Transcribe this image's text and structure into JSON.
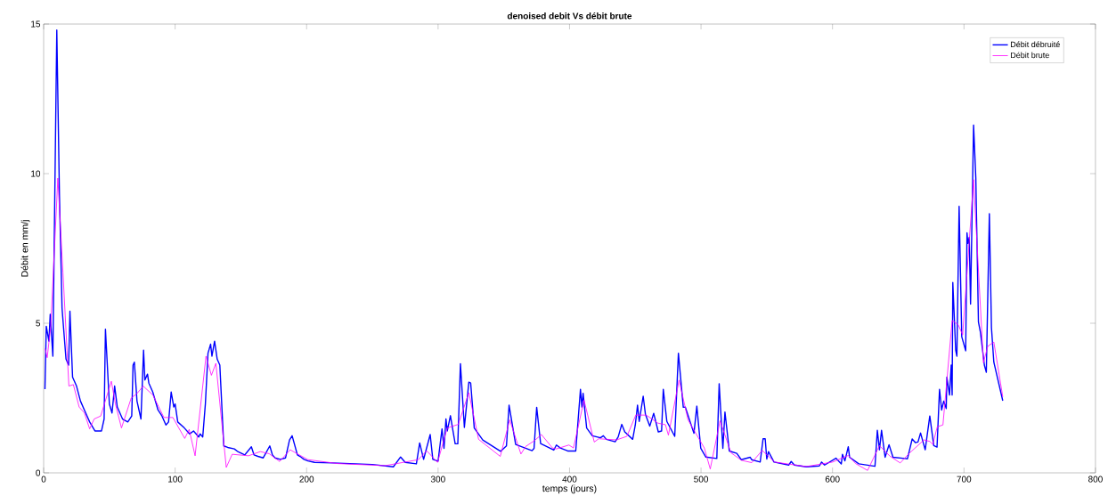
{
  "chart_data": {
    "type": "line",
    "title": "**denoised debit Vs débit brute**",
    "xlabel": "temps (jours)",
    "ylabel": "Débit en mm/j",
    "xlim": [
      0,
      800
    ],
    "ylim": [
      0,
      15
    ],
    "xticks": [
      0,
      100,
      200,
      300,
      400,
      500,
      600,
      700,
      800
    ],
    "yticks": [
      0,
      5,
      10,
      15
    ],
    "legend": "top right",
    "marker": "none",
    "line_style": "solid",
    "series": [
      {
        "name": "Débit débruité",
        "color": "#0000ff",
        "x": [
          1,
          2,
          4,
          5,
          7,
          10,
          12,
          14,
          17,
          19,
          20,
          22,
          25,
          28,
          31,
          35,
          39,
          44,
          46,
          47,
          50,
          52,
          54,
          56,
          60,
          64,
          67,
          68,
          69,
          71,
          74,
          76,
          77,
          79,
          80,
          83,
          87,
          90,
          93,
          95,
          97,
          99,
          100,
          102,
          107,
          111,
          114,
          118,
          119,
          121,
          123,
          125,
          127,
          128,
          130,
          132,
          134,
          137,
          140,
          145,
          148,
          153,
          158,
          160,
          163,
          167,
          172,
          174,
          176,
          180,
          184,
          187,
          189,
          193,
          195,
          198,
          201,
          206,
          220,
          250,
          266,
          271.5,
          275,
          283.5,
          286,
          289,
          294,
          296,
          300,
          303,
          304.5,
          306,
          307,
          309.4,
          313,
          315,
          317,
          320,
          323.4,
          324.8,
          327.5,
          334,
          347.6,
          352,
          354,
          359,
          371.5,
          373,
          375,
          378,
          388,
          390,
          393,
          398.6,
          404.7,
          408.3,
          409.4,
          410.3,
          413,
          417.3,
          423.5,
          425.7,
          428,
          434.7,
          437,
          439.7,
          442,
          448,
          450,
          451.7,
          453,
          456,
          457.7,
          461,
          464,
          467.5,
          470,
          471.3,
          474,
          480,
          482.8,
          486.5,
          488,
          494.6,
          496.8,
          499.8,
          503.6,
          512,
          513.8,
          516.6,
          518.2,
          521.5,
          527.2,
          530.6,
          537.4,
          538.5,
          545,
          547.2,
          548.8,
          550,
          551.3,
          555.5,
          566.7,
          568.6,
          571,
          580,
          590,
          591.7,
          594,
          602.6,
          606.7,
          607.6,
          609.4,
          612,
          613,
          620,
          632.3,
          634.1,
          635.7,
          637.3,
          640,
          643,
          646,
          657,
          660.6,
          663,
          665,
          667,
          670.5,
          674,
          677,
          679.5,
          681.4,
          683,
          684.6,
          686.5,
          687,
          689,
          690.3,
          691,
          691.5,
          693.7,
          694.6,
          696.3,
          698.3,
          701.3,
          702.3,
          703,
          704,
          705,
          707.3,
          709,
          711,
          712.5,
          715.5,
          717,
          719.3,
          720.9,
          722.7,
          729.5
        ],
        "values": [
          2.8,
          4.9,
          4.4,
          5.3,
          3.9,
          14.8,
          9.3,
          5.5,
          3.8,
          3.6,
          5.4,
          3.2,
          2.9,
          2.4,
          2.1,
          1.7,
          1.4,
          1.4,
          1.8,
          4.8,
          2.3,
          2.0,
          2.9,
          2.2,
          1.8,
          1.7,
          1.9,
          3.6,
          3.7,
          2.4,
          1.8,
          4.1,
          3.1,
          3.3,
          3.0,
          2.7,
          2.1,
          1.9,
          1.6,
          1.7,
          2.7,
          2.2,
          2.3,
          1.7,
          1.5,
          1.3,
          1.4,
          1.2,
          1.3,
          1.2,
          2.3,
          4.0,
          4.3,
          3.9,
          4.4,
          3.8,
          3.6,
          0.9,
          0.85,
          0.8,
          0.7,
          0.6,
          0.87,
          0.6,
          0.55,
          0.5,
          0.9,
          0.6,
          0.5,
          0.45,
          0.5,
          1.1,
          1.24,
          0.6,
          0.55,
          0.45,
          0.4,
          0.35,
          0.33,
          0.28,
          0.2,
          0.53,
          0.35,
          0.3,
          1.0,
          0.45,
          1.28,
          0.45,
          0.39,
          1.47,
          0.82,
          1.8,
          1.4,
          1.91,
          0.97,
          0.97,
          3.65,
          1.52,
          3.03,
          3.0,
          1.5,
          1.1,
          0.72,
          0.9,
          2.26,
          0.95,
          0.74,
          0.82,
          2.19,
          0.98,
          0.76,
          0.93,
          0.83,
          0.73,
          0.73,
          2.79,
          2.2,
          2.66,
          1.5,
          1.24,
          1.17,
          1.24,
          1.12,
          1.04,
          1.2,
          1.62,
          1.37,
          1.12,
          1.6,
          2.26,
          1.72,
          2.56,
          1.96,
          1.56,
          1.99,
          1.37,
          1.4,
          2.79,
          1.72,
          1.22,
          4.0,
          2.19,
          2.2,
          1.32,
          2.23,
          0.82,
          0.53,
          0.48,
          2.98,
          0.82,
          2.03,
          0.73,
          0.65,
          0.44,
          0.52,
          0.44,
          0.36,
          1.14,
          1.14,
          0.46,
          0.71,
          0.36,
          0.26,
          0.38,
          0.26,
          0.2,
          0.23,
          0.36,
          0.26,
          0.49,
          0.3,
          0.62,
          0.4,
          0.87,
          0.52,
          0.3,
          0.22,
          1.42,
          0.77,
          1.42,
          0.52,
          0.94,
          0.52,
          0.47,
          1.13,
          1.01,
          1.03,
          1.33,
          0.77,
          1.9,
          0.91,
          0.86,
          2.79,
          2.1,
          2.4,
          2.15,
          3.2,
          2.6,
          3.6,
          2.6,
          6.36,
          4.1,
          3.9,
          8.91,
          4.55,
          4.08,
          8.02,
          7.67,
          7.87,
          5.64,
          11.62,
          9.86,
          5.04,
          4.7,
          3.6,
          3.36,
          8.66,
          4.85,
          3.7,
          2.41
        ]
      },
      {
        "name": "Débit brute",
        "color": "#ff00ff",
        "x": [
          1.2,
          2.7,
          5.4,
          10.8,
          14.7,
          19.2,
          22.6,
          27,
          31,
          35,
          38.4,
          43.4,
          51.5,
          54.6,
          59.2,
          66.6,
          71,
          75.7,
          83.1,
          91.5,
          98.3,
          107.3,
          110.7,
          115.2,
          123.5,
          127.6,
          131,
          138.9,
          143.4,
          155.8,
          164.8,
          171.5,
          179.5,
          187.5,
          201,
          223.6,
          259.7,
          285,
          291.3,
          299.6,
          307,
          315.4,
          323.4,
          330.8,
          347.3,
          354.5,
          363,
          366.6,
          373.4,
          378.6,
          387,
          390,
          399.5,
          403,
          411,
          418.8,
          422.2,
          435.7,
          443.6,
          450.4,
          458.3,
          467.3,
          472.9,
          475.2,
          483.3,
          490.1,
          502.5,
          507,
          514.5,
          522.8,
          530.7,
          538.6,
          546.5,
          556,
          580,
          600,
          612,
          617.6,
          626.7,
          635.7,
          643.6,
          651.5,
          658.3,
          669.6,
          674,
          676.3,
          679.7,
          684,
          691,
          695.6,
          699,
          707.3,
          714.8,
          718.1,
          722.7,
          729.5
        ],
        "values": [
          4.15,
          3.85,
          4.9,
          9.85,
          6.68,
          2.9,
          2.95,
          2.2,
          2.0,
          1.47,
          1.8,
          1.9,
          3.06,
          2.3,
          1.5,
          2.5,
          2.65,
          2.9,
          2.6,
          1.85,
          1.85,
          1.15,
          1.45,
          0.57,
          3.9,
          3.26,
          3.66,
          0.18,
          0.62,
          0.57,
          0.71,
          0.64,
          0.38,
          0.77,
          0.44,
          0.31,
          0.24,
          0.44,
          0.74,
          0.35,
          1.5,
          1.62,
          2.68,
          1.12,
          0.55,
          1.77,
          0.63,
          0.88,
          1.08,
          1.28,
          0.83,
          0.8,
          0.93,
          0.83,
          2.43,
          1.03,
          1.14,
          1.1,
          1.22,
          1.93,
          1.93,
          1.66,
          1.61,
          1.26,
          3.1,
          1.77,
          0.83,
          0.13,
          1.74,
          0.67,
          0.42,
          0.34,
          0.75,
          0.36,
          0.21,
          0.36,
          0.58,
          0.31,
          0.08,
          0.91,
          0.56,
          0.33,
          0.65,
          1.1,
          1.05,
          0.95,
          1.54,
          1.6,
          5.09,
          4.95,
          4.61,
          9.8,
          3.68,
          4.23,
          4.37,
          2.54
        ]
      }
    ]
  }
}
